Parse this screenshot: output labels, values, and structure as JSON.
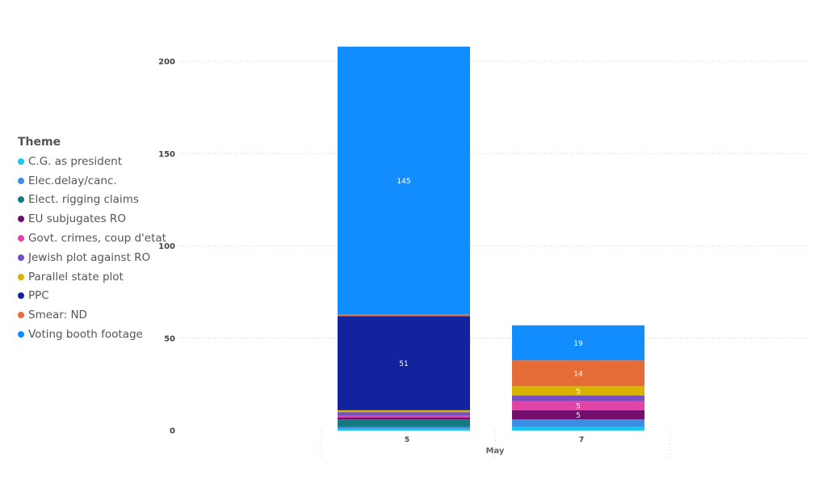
{
  "legend": {
    "title": "Theme"
  },
  "chart_data": {
    "type": "bar",
    "stacked": true,
    "categories": [
      "5",
      "7"
    ],
    "xlabel": "May",
    "ylabel": "",
    "ylim": [
      0,
      208
    ],
    "yticks": [
      0,
      50,
      100,
      150,
      200
    ],
    "legend_position": "left",
    "grid": true,
    "series": [
      {
        "name": "C.G. as president",
        "color": "#1ac7f2",
        "values": [
          1,
          2
        ],
        "labels": [
          "",
          ""
        ]
      },
      {
        "name": "Elec.delay/canc.",
        "color": "#3a8fe5",
        "values": [
          1,
          4
        ],
        "labels": [
          "",
          ""
        ]
      },
      {
        "name": "Elect. rigging claims",
        "color": "#137a7f",
        "values": [
          4,
          0
        ],
        "labels": [
          "",
          ""
        ]
      },
      {
        "name": "EU subjugates RO",
        "color": "#730d6e",
        "values": [
          1,
          5
        ],
        "labels": [
          "",
          "5"
        ]
      },
      {
        "name": "Govt. crimes, coup d'etat",
        "color": "#e044a7",
        "values": [
          1,
          5
        ],
        "labels": [
          "",
          "5"
        ]
      },
      {
        "name": "Jewish plot against RO",
        "color": "#744ec2",
        "values": [
          2,
          3
        ],
        "labels": [
          "",
          ""
        ]
      },
      {
        "name": "Parallel state plot",
        "color": "#d9b300",
        "values": [
          1,
          5
        ],
        "labels": [
          "",
          "5"
        ]
      },
      {
        "name": "PPC",
        "color": "#12239e",
        "values": [
          51,
          0
        ],
        "labels": [
          "51",
          ""
        ]
      },
      {
        "name": "Smear: ND",
        "color": "#e66c37",
        "values": [
          1,
          14
        ],
        "labels": [
          "",
          "14"
        ]
      },
      {
        "name": "Voting booth footage",
        "color": "#118dff",
        "values": [
          145,
          19
        ],
        "labels": [
          "145",
          "19"
        ]
      }
    ]
  }
}
